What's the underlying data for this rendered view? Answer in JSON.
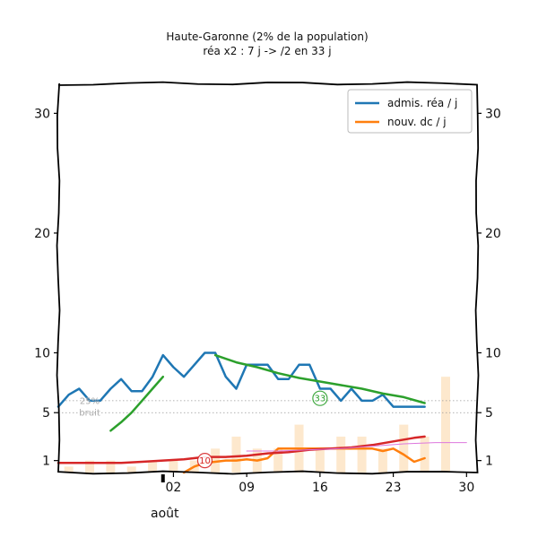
{
  "chart_data": {
    "type": "line",
    "title": "Haute-Garonne (2% de la population)",
    "subtitle": "réa x2 : 7 j -> /2 en 33 j",
    "xlabel": "",
    "ylabel": "",
    "y_ticks": [
      1,
      5,
      10,
      20,
      30
    ],
    "ylim": [
      0,
      32.5
    ],
    "x_day_range": [
      -9,
      31
    ],
    "x_ticks": [
      {
        "day": 2,
        "label": "02"
      },
      {
        "day": 9,
        "label": "09"
      },
      {
        "day": 16,
        "label": "16"
      },
      {
        "day": 23,
        "label": "23"
      },
      {
        "day": 30,
        "label": "30"
      }
    ],
    "month_label": {
      "day": 1,
      "label": "août"
    },
    "legend": {
      "position": "top-right",
      "entries": [
        {
          "label": "admis. réa / j",
          "color": "#1f77b4"
        },
        {
          "label": "nouv. dc / j",
          "color": "#ff7f0e"
        }
      ]
    },
    "series": [
      {
        "name": "admis. réa / j",
        "color": "#1f77b4",
        "x": [
          -9,
          -8,
          -7,
          -6,
          -5,
          -4,
          -3,
          -2,
          -1,
          0,
          1,
          2,
          3,
          4,
          5,
          6,
          7,
          8,
          9,
          10,
          11,
          12,
          13,
          14,
          15,
          16,
          17,
          18,
          19,
          20,
          21,
          22,
          23,
          24,
          25,
          26
        ],
        "y": [
          5.5,
          6.5,
          7,
          6,
          6,
          7,
          7.8,
          6.8,
          6.8,
          8,
          9.8,
          8.8,
          8,
          9,
          10,
          10,
          8,
          7,
          9,
          9,
          9,
          7.8,
          7.8,
          9,
          9,
          7,
          7,
          6,
          7,
          6,
          6,
          6.5,
          5.5,
          5.5,
          5.5,
          5.5
        ]
      },
      {
        "name": "",
        "color": "#ff7f0e",
        "x": [
          3,
          4,
          5,
          6,
          7,
          8,
          9,
          10,
          11,
          12,
          13,
          14,
          15,
          16,
          17,
          18,
          19,
          20,
          21,
          22,
          23,
          24,
          25,
          26
        ],
        "y": [
          0,
          0.5,
          0.8,
          0.9,
          1,
          1,
          1.1,
          1,
          1.2,
          2,
          2,
          2,
          2,
          2,
          2,
          2,
          2,
          2,
          2,
          1.8,
          2,
          1.5,
          0.9,
          1.2
        ]
      },
      {
        "name": "",
        "color": "#2ca02c",
        "x": [
          -4,
          -3,
          -2,
          -1,
          0,
          1
        ],
        "y": [
          3.5,
          4.2,
          5,
          6,
          7,
          8
        ]
      },
      {
        "name": "",
        "color": "#2ca02c",
        "x": [
          6,
          8,
          10,
          12,
          14,
          16,
          18,
          20,
          22,
          24,
          26
        ],
        "y": [
          9.8,
          9.2,
          8.8,
          8.3,
          7.9,
          7.6,
          7.3,
          7,
          6.6,
          6.3,
          5.8
        ]
      },
      {
        "name": "",
        "color": "#d62728",
        "x": [
          -9,
          -7,
          -5,
          -3,
          -1,
          1,
          3,
          5,
          7,
          9,
          11,
          13,
          15,
          17,
          19,
          21,
          23,
          25,
          26
        ],
        "y": [
          0.8,
          0.8,
          0.8,
          0.8,
          0.9,
          1,
          1.1,
          1.3,
          1.3,
          1.4,
          1.6,
          1.7,
          1.9,
          2,
          2.1,
          2.3,
          2.6,
          2.9,
          3
        ]
      },
      {
        "name": "",
        "color": "#dd77dd",
        "x": [
          9,
          12,
          15,
          18,
          21,
          24,
          27,
          30
        ],
        "y": [
          1.8,
          1.8,
          1.9,
          2,
          2.2,
          2.4,
          2.5,
          2.5
        ]
      }
    ],
    "bars": {
      "name": "",
      "color": "#fde4c4",
      "x": [
        -8,
        -6,
        -4,
        -2,
        0,
        2,
        4,
        6,
        8,
        10,
        12,
        14,
        16,
        18,
        20,
        22,
        24,
        26,
        28
      ],
      "y": [
        0.5,
        1,
        1,
        0.5,
        1,
        1,
        1,
        2,
        3,
        2,
        2,
        4,
        2,
        3,
        3,
        2,
        4,
        3,
        8
      ]
    },
    "reference_lines": [
      {
        "y": 5,
        "style": "dotted"
      },
      {
        "y": 6,
        "style": "dotted"
      }
    ],
    "annotations": [
      {
        "text": "25%",
        "day": -6,
        "y": 6,
        "color": "#aaaaaa"
      },
      {
        "text": "bruit",
        "day": -6,
        "y": 5,
        "color": "#aaaaaa"
      },
      {
        "text": "33",
        "day": 16,
        "y": 6.2,
        "color": "#2ca02c",
        "circled": true
      },
      {
        "text": "10",
        "day": 5,
        "y": 1,
        "color": "#d62728",
        "circled": true
      }
    ]
  }
}
